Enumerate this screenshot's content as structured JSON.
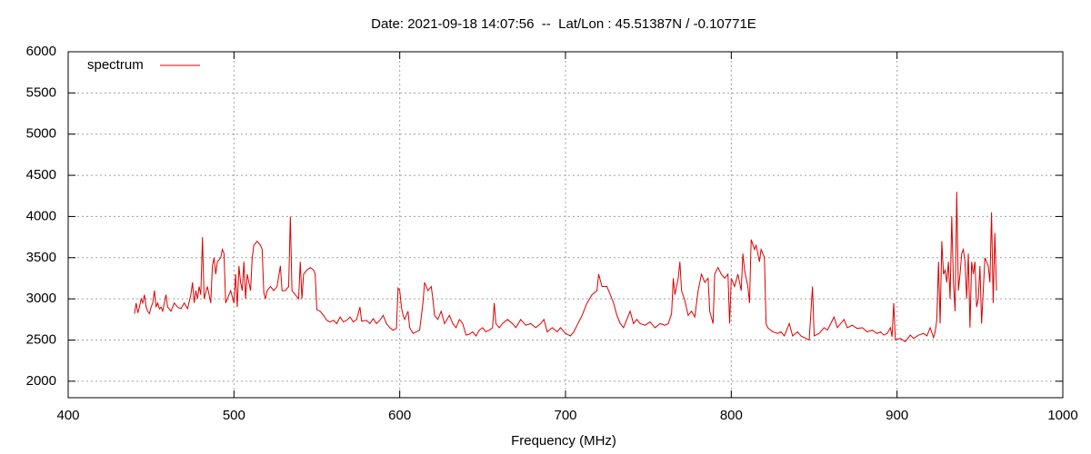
{
  "chart_data": {
    "type": "line",
    "title": "Date: 2021-09-18 14:07:56  --  Lat/Lon : 45.51387N / -0.10771E",
    "x_label": "Frequency (MHz)",
    "xlim": [
      400,
      1000
    ],
    "xticks": [
      400,
      500,
      600,
      700,
      800,
      900,
      1000
    ],
    "ylim": [
      1800,
      6000
    ],
    "yticks": [
      2000,
      2500,
      3000,
      3500,
      4000,
      4500,
      5000,
      5500,
      6000
    ],
    "grid": true,
    "legend": "top-left",
    "x": [
      440,
      441,
      442,
      443,
      444,
      445,
      446,
      447,
      448,
      449,
      450,
      451,
      452,
      453,
      454,
      455,
      456,
      457,
      458,
      459,
      460,
      462,
      464,
      466,
      468,
      470,
      472,
      474,
      475,
      476,
      477,
      478,
      479,
      480,
      481,
      482,
      484,
      486,
      487,
      488,
      489,
      490,
      492,
      493,
      494,
      495,
      496,
      498,
      500,
      501,
      502,
      503,
      504,
      505,
      506,
      507,
      508,
      510,
      511,
      512,
      514,
      516,
      517,
      518,
      519,
      520,
      522,
      524,
      526,
      528,
      529,
      531,
      533,
      534,
      535,
      537,
      539,
      540,
      541,
      542,
      544,
      546,
      548,
      549,
      550,
      552,
      554,
      556,
      558,
      560,
      562,
      564,
      566,
      568,
      570,
      572,
      574,
      576,
      577,
      580,
      582,
      584,
      586,
      588,
      590,
      592,
      594,
      596,
      598,
      599,
      600,
      601,
      602,
      603,
      605,
      606,
      608,
      610,
      612,
      614,
      615,
      617,
      619,
      620,
      621,
      623,
      625,
      627,
      630,
      632,
      634,
      636,
      638,
      640,
      642,
      644,
      646,
      648,
      650,
      652,
      654,
      656,
      657,
      658,
      660,
      662,
      665,
      668,
      670,
      673,
      676,
      679,
      682,
      685,
      687,
      689,
      692,
      695,
      697,
      700,
      703,
      705,
      707,
      710,
      713,
      716,
      719,
      720,
      722,
      725,
      727,
      729,
      731,
      733,
      735,
      737,
      739,
      741,
      743,
      745,
      748,
      751,
      754,
      757,
      760,
      762,
      764,
      765,
      766,
      768,
      769,
      770,
      772,
      774,
      776,
      778,
      780,
      782,
      784,
      786,
      787,
      789,
      790,
      792,
      794,
      796,
      798,
      799,
      800,
      802,
      804,
      806,
      807,
      808,
      810,
      811,
      812,
      814,
      815,
      817,
      818,
      820,
      821,
      822,
      825,
      828,
      830,
      832,
      835,
      837,
      840,
      842,
      845,
      847,
      849,
      850,
      853,
      856,
      858,
      860,
      862,
      864,
      866,
      868,
      870,
      873,
      876,
      879,
      882,
      885,
      888,
      890,
      892,
      894,
      896,
      897,
      898,
      899,
      902,
      905,
      908,
      910,
      913,
      916,
      918,
      920,
      922,
      923,
      924,
      925,
      926,
      927,
      928,
      929,
      930,
      931,
      932,
      933,
      934,
      935,
      936,
      937,
      938,
      939,
      940,
      941,
      942,
      943,
      944,
      945,
      946,
      947,
      948,
      949,
      950,
      951,
      952,
      953,
      954,
      955,
      956,
      957,
      958,
      959,
      960
    ],
    "series": [
      {
        "name": "spectrum",
        "color": "#dd0000",
        "values": [
          2820,
          2950,
          2830,
          2900,
          3000,
          2950,
          3050,
          2900,
          2850,
          2820,
          2900,
          2950,
          3100,
          2900,
          2950,
          2880,
          2900,
          2850,
          2950,
          3050,
          2900,
          2850,
          2950,
          2900,
          2880,
          2950,
          2880,
          3050,
          3200,
          2950,
          3100,
          3000,
          3150,
          3050,
          3750,
          3000,
          3150,
          2950,
          3400,
          3500,
          3300,
          3450,
          3500,
          3600,
          3550,
          2950,
          3000,
          3100,
          2950,
          3300,
          2900,
          3400,
          3200,
          3100,
          3450,
          3000,
          3300,
          3100,
          3500,
          3650,
          3700,
          3650,
          3600,
          3080,
          3000,
          3100,
          3150,
          3100,
          3150,
          3400,
          3100,
          3100,
          3150,
          4000,
          3100,
          3050,
          3000,
          3450,
          3000,
          3300,
          3350,
          3380,
          3350,
          3300,
          2870,
          2850,
          2800,
          2740,
          2720,
          2740,
          2700,
          2780,
          2720,
          2740,
          2780,
          2720,
          2750,
          2900,
          2730,
          2740,
          2700,
          2760,
          2700,
          2740,
          2800,
          2700,
          2650,
          2620,
          2640,
          3130,
          3100,
          2900,
          2800,
          2750,
          2850,
          2650,
          2580,
          2600,
          2620,
          2950,
          3200,
          3100,
          3150,
          3000,
          2800,
          2750,
          2850,
          2700,
          2800,
          2700,
          2650,
          2750,
          2700,
          2560,
          2570,
          2600,
          2550,
          2620,
          2650,
          2600,
          2620,
          2650,
          2950,
          2700,
          2650,
          2700,
          2750,
          2700,
          2650,
          2750,
          2680,
          2700,
          2650,
          2700,
          2750,
          2600,
          2650,
          2600,
          2650,
          2580,
          2550,
          2600,
          2680,
          2800,
          2950,
          3050,
          3100,
          3300,
          3150,
          3150,
          3050,
          2950,
          2800,
          2700,
          2650,
          2750,
          2850,
          2700,
          2750,
          2700,
          2680,
          2720,
          2650,
          2700,
          2680,
          2700,
          2820,
          3250,
          3050,
          3250,
          3450,
          3100,
          2980,
          2800,
          2850,
          2780,
          3100,
          3300,
          3200,
          3250,
          2850,
          2700,
          3300,
          3380,
          3300,
          3250,
          3300,
          2700,
          3250,
          3150,
          3300,
          3100,
          3550,
          3350,
          3150,
          2950,
          3720,
          3600,
          3650,
          3450,
          3600,
          3500,
          2700,
          2650,
          2600,
          2580,
          2600,
          2550,
          2700,
          2550,
          2600,
          2550,
          2520,
          2500,
          3150,
          2550,
          2580,
          2650,
          2620,
          2700,
          2780,
          2650,
          2700,
          2750,
          2650,
          2680,
          2640,
          2650,
          2600,
          2620,
          2580,
          2600,
          2560,
          2580,
          2650,
          2540,
          2950,
          2500,
          2520,
          2480,
          2560,
          2520,
          2560,
          2580,
          2550,
          2650,
          2530,
          2600,
          2750,
          3450,
          2700,
          3700,
          3300,
          3350,
          3200,
          3450,
          3000,
          4000,
          3200,
          2850,
          4300,
          3100,
          3300,
          3550,
          3600,
          3450,
          3000,
          3550,
          2650,
          3450,
          3300,
          3450,
          2900,
          3000,
          3400,
          2700,
          3100,
          3500,
          3450,
          3400,
          3200,
          4050,
          2950,
          3800,
          3100
        ]
      }
    ]
  }
}
